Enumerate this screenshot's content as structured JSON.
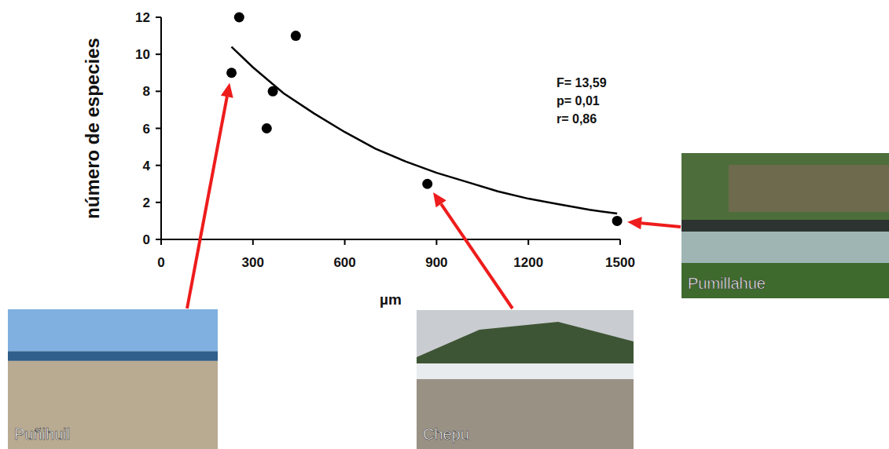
{
  "chart_data": {
    "type": "scatter",
    "x_label": "µm",
    "y_label": "número de especies",
    "xlim": [
      0,
      1500
    ],
    "xticks": [
      0,
      300,
      600,
      900,
      1200,
      1500
    ],
    "ylim": [
      0,
      12
    ],
    "yticks": [
      0,
      2,
      4,
      6,
      8,
      10,
      12
    ],
    "grid": false,
    "series": [
      {
        "type": "scatter",
        "marker": "circle",
        "color": "#000000",
        "x": [
          230,
          255,
          345,
          365,
          440,
          870,
          1490
        ],
        "values": [
          9,
          12,
          6,
          8,
          11,
          3,
          1
        ]
      },
      {
        "type": "line",
        "line_style": "solid",
        "color": "#000000",
        "x": [
          230,
          300,
          400,
          500,
          600,
          700,
          800,
          900,
          1000,
          1100,
          1200,
          1300,
          1400,
          1490
        ],
        "values": [
          10.4,
          9.3,
          7.9,
          6.8,
          5.8,
          4.9,
          4.2,
          3.6,
          3.1,
          2.6,
          2.2,
          1.9,
          1.6,
          1.4
        ]
      }
    ],
    "annotations": [
      {
        "text": "F= 13,59"
      },
      {
        "text": "p= 0,01"
      },
      {
        "text": "r= 0,86"
      },
      {
        "text": "Puñihuil",
        "x": 230,
        "y": 9
      },
      {
        "text": "Chepu",
        "x": 870,
        "y": 3
      },
      {
        "text": "Pumillahue",
        "x": 1490,
        "y": 1
      }
    ]
  }
}
